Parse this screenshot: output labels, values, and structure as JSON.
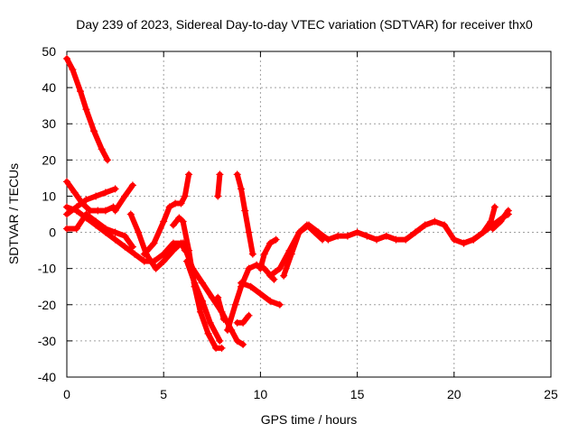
{
  "chart_data": {
    "type": "scatter",
    "title": "Day 239 of 2023, Sidereal Day-to-day VTEC variation (SDTVAR) for receiver thx0",
    "xlabel": "GPS time / hours",
    "ylabel": "SDTVAR / TECUs",
    "xlim": [
      0,
      25
    ],
    "ylim": [
      -40,
      50
    ],
    "x_ticks": [
      0,
      5,
      10,
      15,
      20,
      25
    ],
    "y_ticks": [
      -40,
      -30,
      -20,
      -10,
      0,
      10,
      20,
      30,
      40,
      50
    ],
    "grid": true,
    "marker": "+",
    "series_color": "#ff0000",
    "series": [
      {
        "name": "s1",
        "x": [
          0.0,
          0.3,
          0.7,
          1.0,
          1.4,
          1.8,
          2.1
        ],
        "y": [
          48,
          45,
          39,
          34,
          28,
          23,
          20
        ]
      },
      {
        "name": "s2",
        "x": [
          0.0,
          0.4,
          0.8,
          1.2,
          1.6,
          2.0,
          2.4
        ],
        "y": [
          14,
          11,
          8,
          6,
          6,
          6,
          7
        ]
      },
      {
        "name": "s3",
        "x": [
          0.0,
          0.5,
          1.0,
          1.5,
          2.0,
          2.5
        ],
        "y": [
          5,
          7,
          9,
          10,
          11,
          12
        ]
      },
      {
        "name": "s4",
        "x": [
          0.0,
          0.5,
          1.0,
          1.5,
          2.0,
          2.5,
          3.0,
          3.4
        ],
        "y": [
          1,
          1,
          5,
          3,
          1,
          0,
          -1,
          -4
        ]
      },
      {
        "name": "s5",
        "x": [
          2.5,
          3.0,
          3.4
        ],
        "y": [
          6,
          10,
          13
        ]
      },
      {
        "name": "s6",
        "x": [
          0.0,
          0.5,
          1.0,
          1.5,
          2.0,
          2.5,
          3.0,
          3.5,
          4.0,
          4.5,
          5.0,
          5.5,
          6.0
        ],
        "y": [
          7,
          6,
          4,
          2,
          0,
          -2,
          -4,
          -6,
          -8,
          -8,
          -6,
          -3,
          -3
        ]
      },
      {
        "name": "s7",
        "x": [
          3.3,
          3.7,
          4.1,
          4.6,
          5.0,
          5.5,
          5.9,
          6.1
        ],
        "y": [
          5,
          0,
          -6,
          -10,
          -8,
          -5,
          -3,
          -5
        ]
      },
      {
        "name": "s8",
        "x": [
          4.0,
          4.5,
          5.0,
          5.3,
          5.6,
          5.9,
          6.1,
          6.3
        ],
        "y": [
          -6,
          -3,
          3,
          7,
          8,
          8,
          10,
          16
        ]
      },
      {
        "name": "s9",
        "x": [
          5.5,
          5.8,
          6.0,
          6.3,
          6.6,
          6.9,
          7.3,
          7.7,
          8.0
        ],
        "y": [
          2,
          4,
          3,
          -5,
          -15,
          -22,
          -28,
          -32,
          -32
        ]
      },
      {
        "name": "s10",
        "x": [
          6.0,
          6.5,
          7.0,
          7.5,
          8.0,
          8.5,
          8.8,
          9.1
        ],
        "y": [
          -3,
          -10,
          -14,
          -18,
          -22,
          -27,
          -30,
          -31
        ]
      },
      {
        "name": "s11",
        "x": [
          6.2,
          6.6,
          7.0,
          7.4,
          7.9
        ],
        "y": [
          -8,
          -14,
          -19,
          -25,
          -30
        ]
      },
      {
        "name": "s12",
        "x": [
          7.8,
          8.1
        ],
        "y": [
          -18,
          -24
        ]
      },
      {
        "name": "s13",
        "x": [
          7.8,
          7.9
        ],
        "y": [
          10,
          16
        ]
      },
      {
        "name": "s14",
        "x": [
          8.8,
          9.0,
          9.2,
          9.4,
          9.6
        ],
        "y": [
          16,
          12,
          6,
          0,
          -6
        ]
      },
      {
        "name": "s15",
        "x": [
          8.3,
          8.7,
          9.0,
          9.4,
          9.8,
          10.2,
          10.7
        ],
        "y": [
          -27,
          -20,
          -15,
          -10,
          -9,
          -10,
          -13
        ]
      },
      {
        "name": "s16",
        "x": [
          8.8,
          9.1,
          9.4
        ],
        "y": [
          -25,
          -25,
          -23
        ]
      },
      {
        "name": "s17",
        "x": [
          9.0,
          9.5,
          10.0,
          10.5,
          11.0
        ],
        "y": [
          -14,
          -15,
          -17,
          -19,
          -20
        ]
      },
      {
        "name": "s18",
        "x": [
          10.0,
          10.2,
          10.5,
          10.8
        ],
        "y": [
          -10,
          -6,
          -3,
          -2
        ]
      },
      {
        "name": "s19",
        "x": [
          10.5,
          11.0,
          11.5,
          12.0,
          12.5,
          13.0,
          13.5,
          14.0,
          14.5,
          15.0,
          15.5,
          16.0,
          16.5,
          17.0,
          17.5,
          18.0,
          18.5,
          19.0,
          19.5,
          20.0,
          20.5,
          21.0,
          21.5,
          22.0,
          22.5,
          22.8
        ],
        "y": [
          -12,
          -10,
          -5,
          0,
          2,
          0,
          -2,
          -1,
          -1,
          0,
          -1,
          -2,
          -1,
          -2,
          -2,
          0,
          2,
          3,
          2,
          -2,
          -3,
          -2,
          0,
          2,
          4,
          5
        ]
      },
      {
        "name": "s20",
        "x": [
          11.2,
          11.6,
          12.0,
          12.4,
          12.8,
          13.2
        ],
        "y": [
          -12,
          -6,
          0,
          2,
          0,
          -2
        ]
      },
      {
        "name": "s21",
        "x": [
          20.5,
          21.0,
          21.5,
          21.9,
          22.1
        ],
        "y": [
          -3,
          -2,
          0,
          3,
          7
        ]
      },
      {
        "name": "s22",
        "x": [
          22.0,
          22.4,
          22.8
        ],
        "y": [
          1,
          3,
          6
        ]
      }
    ]
  }
}
